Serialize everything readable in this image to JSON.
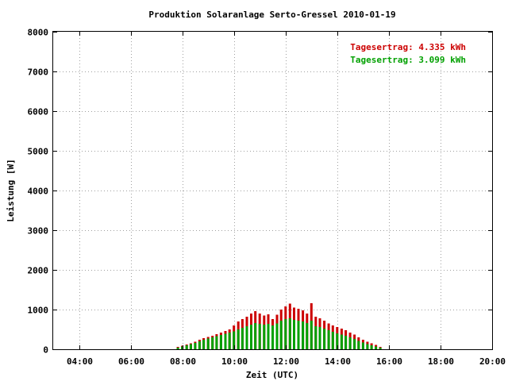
{
  "chart_data": {
    "type": "bar",
    "title": "Produktion Solaranlage Serto-Gressel 2010-01-19",
    "xlabel": "Zeit (UTC)",
    "ylabel": "Leistung [W]",
    "xlim": [
      3.0,
      20.0
    ],
    "ylim": [
      0,
      8000
    ],
    "x_ticks": [
      "04:00",
      "06:00",
      "08:00",
      "10:00",
      "12:00",
      "14:00",
      "16:00",
      "18:00",
      "20:00"
    ],
    "y_ticks": [
      "0",
      "1000",
      "2000",
      "3000",
      "4000",
      "5000",
      "6000",
      "7000",
      "8000"
    ],
    "grid": true,
    "legend_position": "top-right",
    "series": [
      {
        "label": "Tagesertrag: 4.335 kWh",
        "color": "#cc0000",
        "x": [
          7.83,
          8.0,
          8.17,
          8.33,
          8.5,
          8.67,
          8.83,
          9.0,
          9.17,
          9.33,
          9.5,
          9.67,
          9.83,
          10.0,
          10.17,
          10.33,
          10.5,
          10.67,
          10.83,
          11.0,
          11.17,
          11.33,
          11.5,
          11.67,
          11.83,
          12.0,
          12.17,
          12.33,
          12.5,
          12.67,
          12.83,
          13.0,
          13.17,
          13.33,
          13.5,
          13.67,
          13.83,
          14.0,
          14.17,
          14.33,
          14.5,
          14.67,
          14.83,
          15.0,
          15.17,
          15.33,
          15.5,
          15.67
        ],
        "y": [
          60,
          90,
          120,
          150,
          190,
          240,
          280,
          310,
          340,
          380,
          420,
          460,
          500,
          600,
          700,
          760,
          820,
          900,
          960,
          900,
          850,
          880,
          760,
          870,
          1000,
          1080,
          1150,
          1050,
          1020,
          980,
          900,
          1160,
          820,
          780,
          720,
          650,
          600,
          560,
          520,
          480,
          420,
          370,
          300,
          240,
          190,
          150,
          110,
          60
        ]
      },
      {
        "label": "Tagesertrag: 3.099 kWh",
        "color": "#00a000",
        "x": [
          7.83,
          8.0,
          8.17,
          8.33,
          8.5,
          8.67,
          8.83,
          9.0,
          9.17,
          9.33,
          9.5,
          9.67,
          9.83,
          10.0,
          10.17,
          10.33,
          10.5,
          10.67,
          10.83,
          11.0,
          11.17,
          11.33,
          11.5,
          11.67,
          11.83,
          12.0,
          12.17,
          12.33,
          12.5,
          12.67,
          12.83,
          13.0,
          13.17,
          13.33,
          13.5,
          13.67,
          13.83,
          14.0,
          14.17,
          14.33,
          14.5,
          14.67,
          14.83,
          15.0,
          15.17,
          15.33,
          15.5,
          15.67
        ],
        "y": [
          40,
          70,
          100,
          130,
          160,
          200,
          240,
          270,
          300,
          330,
          360,
          390,
          420,
          450,
          500,
          540,
          580,
          620,
          660,
          640,
          620,
          640,
          600,
          650,
          720,
          760,
          780,
          740,
          720,
          700,
          660,
          720,
          580,
          560,
          520,
          480,
          440,
          400,
          370,
          340,
          300,
          260,
          210,
          170,
          130,
          100,
          70,
          40
        ]
      }
    ]
  }
}
